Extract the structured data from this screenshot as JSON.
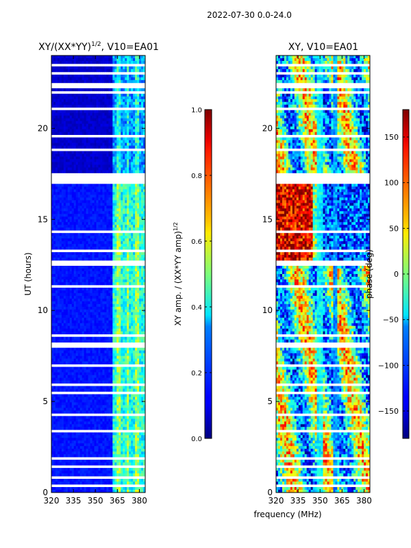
{
  "figure": {
    "suptitle": "2022-07-30 0.0-24.0",
    "xlabel": "frequency (MHz)"
  },
  "chart_data": [
    {
      "type": "heatmap",
      "title_main": "XY/(XX*YY)",
      "title_exp": "1/2",
      "title_tail": ", V10=EA01",
      "ylabel": "UT (hours)",
      "xlim": [
        320,
        384
      ],
      "ylim": [
        0,
        24
      ],
      "xticks": [
        320,
        335,
        350,
        365,
        380
      ],
      "yticks": [
        0,
        5,
        10,
        15,
        20
      ],
      "colorbar": {
        "label_main": "XY amp. / (XX*YY amp)",
        "label_exp": "1/2",
        "range": [
          0.0,
          1.0
        ],
        "ticks": [
          "0.0",
          "0.2",
          "0.4",
          "0.6",
          "0.8",
          "1.0"
        ],
        "colormap": "jet"
      }
    },
    {
      "type": "heatmap",
      "title": "XY, V10=EA01",
      "xlim": [
        320,
        384
      ],
      "ylim": [
        0,
        24
      ],
      "xticks": [
        320,
        335,
        350,
        365,
        380
      ],
      "yticks": [
        0,
        5,
        10,
        15,
        20
      ],
      "colorbar": {
        "label": "phase (deg)",
        "range": [
          -180,
          180
        ],
        "ticks": [
          "−150",
          "−100",
          "−50",
          "0",
          "50",
          "100",
          "150"
        ],
        "colormap": "jet"
      }
    }
  ]
}
